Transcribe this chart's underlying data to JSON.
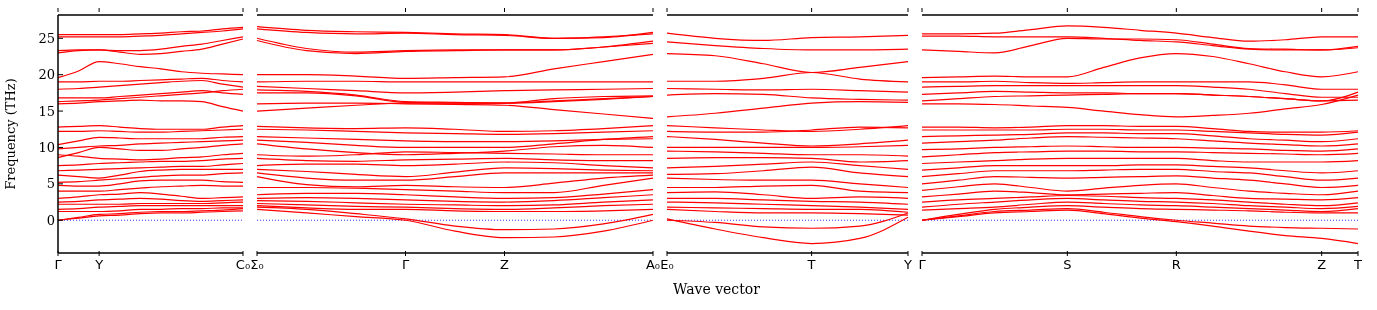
{
  "chart_data": [
    {
      "type": "line",
      "ylabel": "Frequency (THz)",
      "marker": "none",
      "categories": [
        "Γ",
        null,
        "Y",
        null,
        null,
        null,
        null,
        null,
        null,
        "C₀"
      ],
      "ylim": [
        -4.5,
        28.2
      ],
      "yticks": [
        0,
        5,
        10,
        15,
        20,
        25
      ],
      "ref_lines": [
        {
          "axis": "y",
          "value": 0,
          "color": "#0000ff",
          "line_style": "dotted"
        }
      ],
      "series": [
        {
          "color": "#ff0000",
          "values": [
            25.5,
            25.5,
            25.5,
            25.5,
            25.6,
            25.7,
            25.9,
            26.0,
            26.3,
            26.5
          ]
        },
        {
          "color": "#ff0000",
          "values": [
            25.2,
            25.2,
            25.2,
            25.2,
            25.3,
            25.4,
            25.6,
            25.8,
            26.0,
            26.3
          ]
        },
        {
          "color": "#ff0000",
          "values": [
            23.3,
            23.4,
            23.4,
            23.3,
            23.3,
            23.5,
            23.9,
            24.2,
            24.7,
            25.2
          ]
        },
        {
          "color": "#ff0000",
          "values": [
            23.0,
            23.3,
            23.4,
            23.1,
            22.8,
            22.9,
            23.2,
            23.5,
            24.2,
            24.9
          ]
        },
        {
          "color": "#ff0000",
          "values": [
            19.6,
            20.5,
            21.8,
            21.5,
            21.1,
            20.8,
            20.4,
            20.2,
            20.1,
            20.0
          ]
        },
        {
          "color": "#ff0000",
          "values": [
            19.0,
            19.0,
            19.1,
            19.1,
            19.2,
            19.3,
            19.4,
            19.5,
            19.2,
            19.0
          ]
        },
        {
          "color": "#ff0000",
          "values": [
            18.0,
            18.1,
            18.3,
            18.5,
            18.7,
            18.9,
            19.1,
            19.2,
            18.7,
            18.3
          ]
        },
        {
          "color": "#ff0000",
          "values": [
            16.8,
            16.8,
            16.8,
            17.0,
            17.2,
            17.4,
            17.6,
            17.8,
            17.5,
            17.3
          ]
        },
        {
          "color": "#ff0000",
          "values": [
            16.3,
            16.4,
            16.5,
            16.7,
            16.9,
            17.1,
            17.3,
            17.5,
            17.8,
            18.0
          ]
        },
        {
          "color": "#ff0000",
          "values": [
            16.0,
            16.1,
            16.3,
            16.4,
            16.5,
            16.4,
            16.4,
            16.3,
            15.6,
            15.0
          ]
        },
        {
          "color": "#ff0000",
          "values": [
            12.8,
            12.9,
            13.0,
            12.8,
            12.6,
            12.5,
            12.5,
            12.5,
            12.8,
            13.0
          ]
        },
        {
          "color": "#ff0000",
          "values": [
            12.2,
            12.2,
            12.3,
            12.2,
            12.1,
            12.1,
            12.2,
            12.3,
            12.4,
            12.5
          ]
        },
        {
          "color": "#ff0000",
          "values": [
            10.4,
            10.9,
            11.4,
            11.3,
            11.2,
            11.2,
            11.2,
            11.2,
            11.4,
            11.5
          ]
        },
        {
          "color": "#ff0000",
          "values": [
            9.8,
            10.0,
            10.2,
            10.3,
            10.5,
            10.6,
            10.7,
            10.8,
            10.9,
            11.0
          ]
        },
        {
          "color": "#ff0000",
          "values": [
            8.6,
            9.3,
            10.0,
            9.8,
            9.6,
            9.6,
            9.8,
            10.0,
            10.3,
            10.5
          ]
        },
        {
          "color": "#ff0000",
          "values": [
            9.0,
            8.8,
            8.5,
            8.4,
            8.3,
            8.4,
            8.6,
            8.7,
            9.0,
            9.2
          ]
        },
        {
          "color": "#ff0000",
          "values": [
            7.5,
            7.6,
            7.8,
            7.9,
            8.0,
            8.1,
            8.1,
            8.2,
            8.4,
            8.5
          ]
        },
        {
          "color": "#ff0000",
          "values": [
            6.8,
            6.9,
            7.0,
            7.1,
            7.2,
            7.3,
            7.4,
            7.4,
            7.6,
            7.8
          ]
        },
        {
          "color": "#ff0000",
          "values": [
            6.2,
            6.0,
            5.8,
            6.2,
            6.7,
            6.9,
            7.0,
            7.0,
            7.0,
            7.0
          ]
        },
        {
          "color": "#ff0000",
          "values": [
            5.2,
            5.3,
            5.5,
            5.7,
            5.9,
            6.1,
            6.2,
            6.2,
            6.4,
            6.5
          ]
        },
        {
          "color": "#ff0000",
          "values": [
            4.8,
            4.7,
            4.7,
            5.0,
            5.4,
            5.5,
            5.5,
            5.5,
            5.3,
            5.2
          ]
        },
        {
          "color": "#ff0000",
          "values": [
            4.0,
            4.0,
            4.0,
            4.2,
            4.4,
            4.6,
            4.7,
            4.8,
            4.7,
            4.7
          ]
        },
        {
          "color": "#ff0000",
          "values": [
            3.0,
            3.2,
            3.5,
            3.6,
            3.8,
            3.6,
            3.3,
            3.0,
            3.1,
            3.2
          ]
        },
        {
          "color": "#ff0000",
          "values": [
            2.5,
            2.6,
            2.8,
            2.9,
            3.0,
            2.9,
            2.7,
            2.6,
            2.7,
            2.8
          ]
        },
        {
          "color": "#ff0000",
          "values": [
            2.2,
            2.2,
            2.2,
            2.2,
            2.3,
            2.3,
            2.3,
            2.3,
            2.4,
            2.5
          ]
        },
        {
          "color": "#ff0000",
          "values": [
            1.5,
            1.6,
            1.8,
            1.9,
            2.0,
            2.0,
            2.0,
            2.0,
            2.0,
            2.0
          ]
        },
        {
          "color": "#ff0000",
          "values": [
            1.2,
            1.2,
            1.2,
            1.3,
            1.5,
            1.5,
            1.6,
            1.6,
            1.7,
            1.7
          ]
        },
        {
          "color": "#ff0000",
          "values": [
            0.0,
            0.4,
            0.8,
            0.9,
            1.1,
            1.2,
            1.2,
            1.3,
            1.4,
            1.6
          ]
        },
        {
          "color": "#ff0000",
          "values": [
            0.0,
            0.3,
            0.6,
            0.7,
            0.9,
            1.0,
            1.0,
            1.1,
            1.2,
            1.3
          ]
        }
      ]
    },
    {
      "type": "line",
      "marker": "none",
      "tick_labels": "x",
      "categories": [
        "Σ₀",
        null,
        null,
        "Γ",
        null,
        "Z",
        null,
        null,
        "A₀"
      ],
      "ylim": [
        -4.5,
        28.2
      ],
      "yticks": [
        0,
        5,
        10,
        15,
        20,
        25
      ],
      "ref_lines": [
        {
          "axis": "y",
          "value": 0,
          "color": "#0000ff",
          "line_style": "dotted"
        }
      ],
      "series": [
        {
          "color": "#ff0000",
          "values": [
            26.6,
            26.1,
            25.9,
            25.8,
            25.6,
            25.5,
            25.0,
            25.1,
            25.8
          ]
        },
        {
          "color": "#ff0000",
          "values": [
            26.3,
            25.8,
            25.6,
            25.7,
            25.5,
            25.4,
            25.0,
            25.2,
            25.6
          ]
        },
        {
          "color": "#ff0000",
          "values": [
            25.0,
            23.6,
            23.1,
            23.3,
            23.4,
            23.4,
            23.4,
            23.8,
            24.6
          ]
        },
        {
          "color": "#ff0000",
          "values": [
            24.7,
            23.3,
            22.9,
            23.2,
            23.3,
            23.4,
            23.4,
            23.8,
            24.3
          ]
        },
        {
          "color": "#ff0000",
          "values": [
            20.0,
            20.0,
            19.8,
            19.5,
            19.6,
            19.7,
            20.8,
            21.8,
            22.8
          ]
        },
        {
          "color": "#ff0000",
          "values": [
            19.0,
            19.1,
            19.1,
            19.0,
            19.0,
            19.0,
            19.0,
            19.0,
            19.0
          ]
        },
        {
          "color": "#ff0000",
          "values": [
            18.4,
            18.1,
            17.8,
            17.5,
            17.6,
            17.8,
            17.9,
            18.0,
            18.1
          ]
        },
        {
          "color": "#ff0000",
          "values": [
            17.5,
            17.5,
            17.1,
            16.2,
            16.1,
            16.1,
            16.7,
            17.0,
            17.1
          ]
        },
        {
          "color": "#ff0000",
          "values": [
            17.9,
            17.7,
            17.2,
            16.3,
            16.2,
            16.1,
            16.3,
            16.6,
            17.0
          ]
        },
        {
          "color": "#ff0000",
          "values": [
            16.0,
            16.1,
            16.1,
            16.0,
            15.9,
            15.8,
            15.2,
            14.6,
            14.0
          ]
        },
        {
          "color": "#ff0000",
          "values": [
            15.0,
            15.4,
            15.8,
            16.1,
            16.1,
            16.1,
            16.4,
            16.7,
            17.0
          ]
        },
        {
          "color": "#ff0000",
          "values": [
            12.9,
            12.7,
            12.6,
            12.7,
            12.5,
            12.2,
            12.3,
            12.6,
            13.0
          ]
        },
        {
          "color": "#ff0000",
          "values": [
            12.5,
            12.4,
            12.2,
            12.0,
            11.9,
            11.8,
            11.9,
            12.1,
            12.3
          ]
        },
        {
          "color": "#ff0000",
          "values": [
            11.5,
            11.3,
            11.1,
            10.9,
            10.8,
            10.8,
            10.9,
            11.1,
            11.2
          ]
        },
        {
          "color": "#ff0000",
          "values": [
            11.0,
            10.7,
            10.3,
            10.0,
            10.0,
            10.0,
            10.5,
            11.1,
            11.5
          ]
        },
        {
          "color": "#ff0000",
          "values": [
            10.5,
            9.8,
            9.3,
            9.0,
            9.2,
            9.5,
            10.1,
            10.3,
            10.0
          ]
        },
        {
          "color": "#ff0000",
          "values": [
            9.0,
            8.8,
            9.0,
            9.4,
            9.3,
            9.2,
            9.1,
            9.0,
            9.0
          ]
        },
        {
          "color": "#ff0000",
          "values": [
            8.5,
            8.2,
            8.1,
            8.3,
            8.4,
            8.5,
            8.3,
            8.2,
            8.2
          ]
        },
        {
          "color": "#ff0000",
          "values": [
            7.5,
            7.7,
            7.7,
            7.5,
            7.7,
            8.0,
            7.9,
            7.5,
            7.2
          ]
        },
        {
          "color": "#ff0000",
          "values": [
            7.0,
            6.7,
            6.3,
            6.0,
            6.6,
            7.2,
            7.1,
            6.9,
            6.8
          ]
        },
        {
          "color": "#ff0000",
          "values": [
            6.5,
            5.8,
            5.5,
            5.5,
            6.0,
            6.5,
            6.5,
            6.5,
            6.5
          ]
        },
        {
          "color": "#ff0000",
          "values": [
            6.0,
            4.9,
            4.6,
            4.8,
            4.6,
            4.5,
            5.1,
            5.8,
            6.2
          ]
        },
        {
          "color": "#ff0000",
          "values": [
            4.5,
            4.5,
            4.4,
            4.2,
            4.0,
            3.8,
            3.8,
            4.8,
            5.8
          ]
        },
        {
          "color": "#ff0000",
          "values": [
            3.5,
            3.7,
            3.7,
            3.5,
            3.2,
            3.0,
            3.1,
            3.6,
            4.2
          ]
        },
        {
          "color": "#ff0000",
          "values": [
            3.0,
            3.1,
            3.0,
            2.8,
            2.6,
            2.5,
            2.7,
            3.1,
            3.5
          ]
        },
        {
          "color": "#ff0000",
          "values": [
            2.7,
            2.6,
            2.4,
            2.2,
            2.1,
            2.0,
            2.1,
            2.5,
            2.8
          ]
        },
        {
          "color": "#ff0000",
          "values": [
            2.3,
            2.1,
            1.9,
            1.8,
            1.6,
            1.5,
            1.7,
            2.0,
            2.2
          ]
        },
        {
          "color": "#ff0000",
          "values": [
            2.0,
            1.7,
            1.5,
            1.5,
            1.3,
            1.2,
            1.2,
            1.3,
            1.5
          ]
        },
        {
          "color": "#ff0000",
          "values": [
            1.8,
            1.5,
            0.9,
            0.2,
            -0.8,
            -1.3,
            -1.2,
            -0.5,
            0.8
          ]
        },
        {
          "color": "#ff0000",
          "values": [
            1.5,
            1.0,
            0.5,
            0.0,
            -1.5,
            -2.4,
            -2.3,
            -1.5,
            0.0
          ]
        }
      ]
    },
    {
      "type": "line",
      "marker": "none",
      "tick_labels": "x",
      "xlabel": "Wave vector",
      "categories": [
        "E₀",
        null,
        null,
        "T",
        null,
        "Y"
      ],
      "ylim": [
        -4.5,
        28.2
      ],
      "yticks": [
        0,
        5,
        10,
        15,
        20,
        25
      ],
      "ref_lines": [
        {
          "axis": "y",
          "value": 0,
          "color": "#0000ff",
          "line_style": "dotted"
        }
      ],
      "series": [
        {
          "color": "#ff0000",
          "values": [
            25.7,
            25.0,
            24.7,
            25.1,
            25.2,
            25.4
          ]
        },
        {
          "color": "#ff0000",
          "values": [
            24.5,
            24.0,
            23.6,
            23.4,
            23.4,
            23.5
          ]
        },
        {
          "color": "#ff0000",
          "values": [
            22.9,
            22.6,
            21.5,
            20.3,
            21.0,
            21.8
          ]
        },
        {
          "color": "#ff0000",
          "values": [
            19.1,
            19.1,
            19.5,
            20.3,
            19.4,
            19.0
          ]
        },
        {
          "color": "#ff0000",
          "values": [
            18.1,
            18.0,
            17.9,
            18.0,
            17.8,
            17.6
          ]
        },
        {
          "color": "#ff0000",
          "values": [
            17.2,
            17.4,
            17.3,
            16.8,
            16.6,
            16.5
          ]
        },
        {
          "color": "#ff0000",
          "values": [
            14.2,
            14.7,
            15.4,
            16.1,
            16.3,
            16.2
          ]
        },
        {
          "color": "#ff0000",
          "values": [
            13.0,
            12.7,
            12.4,
            12.2,
            12.5,
            13.0
          ]
        },
        {
          "color": "#ff0000",
          "values": [
            12.2,
            12.1,
            12.1,
            12.4,
            12.8,
            12.7
          ]
        },
        {
          "color": "#ff0000",
          "values": [
            11.5,
            11.1,
            10.6,
            10.2,
            10.5,
            11.0
          ]
        },
        {
          "color": "#ff0000",
          "values": [
            10.0,
            10.0,
            10.0,
            10.0,
            10.1,
            10.3
          ]
        },
        {
          "color": "#ff0000",
          "values": [
            9.5,
            9.4,
            9.2,
            9.0,
            9.0,
            8.8
          ]
        },
        {
          "color": "#ff0000",
          "values": [
            8.5,
            8.6,
            8.6,
            8.5,
            8.0,
            8.2
          ]
        },
        {
          "color": "#ff0000",
          "values": [
            7.2,
            7.4,
            7.7,
            8.0,
            7.5,
            7.0
          ]
        },
        {
          "color": "#ff0000",
          "values": [
            6.3,
            6.4,
            6.8,
            7.3,
            6.5,
            6.0
          ]
        },
        {
          "color": "#ff0000",
          "values": [
            5.8,
            5.6,
            5.5,
            5.5,
            5.0,
            4.5
          ]
        },
        {
          "color": "#ff0000",
          "values": [
            4.5,
            4.5,
            4.7,
            4.8,
            4.0,
            3.8
          ]
        },
        {
          "color": "#ff0000",
          "values": [
            3.8,
            3.9,
            3.5,
            3.0,
            3.2,
            3.0
          ]
        },
        {
          "color": "#ff0000",
          "values": [
            3.0,
            3.0,
            2.8,
            2.6,
            2.5,
            2.2
          ]
        },
        {
          "color": "#ff0000",
          "values": [
            2.5,
            2.4,
            2.2,
            2.0,
            1.8,
            1.5
          ]
        },
        {
          "color": "#ff0000",
          "values": [
            1.8,
            1.7,
            1.6,
            1.5,
            1.5,
            1.1
          ]
        },
        {
          "color": "#ff0000",
          "values": [
            1.5,
            1.2,
            1.0,
            1.0,
            0.9,
            0.7
          ]
        },
        {
          "color": "#ff0000",
          "values": [
            0.0,
            -0.3,
            -0.9,
            -1.1,
            -0.8,
            1.0
          ]
        },
        {
          "color": "#ff0000",
          "values": [
            0.2,
            -1.2,
            -2.4,
            -3.2,
            -2.5,
            0.4
          ]
        }
      ]
    },
    {
      "type": "line",
      "marker": "none",
      "tick_labels": "x",
      "categories": [
        "Γ",
        null,
        null,
        null,
        "S",
        null,
        null,
        "R",
        null,
        null,
        null,
        "Z",
        "T"
      ],
      "ylim": [
        -4.5,
        28.2
      ],
      "yticks": [
        0,
        5,
        10,
        15,
        20,
        25
      ],
      "ref_lines": [
        {
          "axis": "y",
          "value": 0,
          "color": "#0000ff",
          "line_style": "dotted"
        }
      ],
      "series": [
        {
          "color": "#ff0000",
          "values": [
            25.6,
            25.6,
            25.7,
            26.2,
            26.7,
            26.5,
            26.1,
            25.7,
            25.1,
            24.6,
            24.8,
            25.2,
            25.2
          ]
        },
        {
          "color": "#ff0000",
          "values": [
            25.3,
            25.3,
            25.2,
            25.2,
            25.2,
            25.0,
            24.7,
            24.5,
            24.0,
            23.5,
            23.4,
            23.4,
            23.7
          ]
        },
        {
          "color": "#ff0000",
          "values": [
            23.4,
            23.2,
            23.0,
            24.0,
            25.0,
            24.9,
            24.9,
            24.8,
            24.2,
            23.6,
            23.5,
            23.4,
            23.9
          ]
        },
        {
          "color": "#ff0000",
          "values": [
            19.6,
            19.7,
            19.8,
            19.7,
            19.7,
            21.0,
            22.3,
            22.9,
            22.5,
            21.5,
            20.4,
            19.7,
            20.4
          ]
        },
        {
          "color": "#ff0000",
          "values": [
            19.0,
            19.0,
            19.1,
            18.9,
            18.8,
            18.9,
            19.0,
            19.0,
            19.0,
            19.0,
            18.6,
            18.0,
            18.0
          ]
        },
        {
          "color": "#ff0000",
          "values": [
            18.3,
            18.4,
            18.5,
            18.5,
            18.5,
            18.5,
            18.5,
            18.5,
            18.3,
            18.0,
            17.4,
            16.9,
            16.9
          ]
        },
        {
          "color": "#ff0000",
          "values": [
            17.3,
            17.5,
            17.7,
            17.6,
            17.5,
            17.5,
            17.4,
            17.4,
            17.2,
            17.0,
            16.7,
            16.4,
            17.6
          ]
        },
        {
          "color": "#ff0000",
          "values": [
            16.4,
            16.7,
            17.0,
            17.1,
            17.2,
            17.3,
            17.4,
            17.4,
            17.2,
            17.0,
            16.7,
            16.4,
            16.5
          ]
        },
        {
          "color": "#ff0000",
          "values": [
            16.0,
            16.0,
            15.9,
            15.7,
            15.5,
            15.0,
            14.5,
            14.2,
            14.4,
            14.7,
            15.3,
            15.9,
            17.2
          ]
        },
        {
          "color": "#ff0000",
          "values": [
            12.8,
            12.8,
            12.7,
            12.8,
            13.0,
            13.0,
            12.9,
            12.9,
            12.6,
            12.2,
            12.1,
            12.1,
            12.3
          ]
        },
        {
          "color": "#ff0000",
          "values": [
            12.4,
            12.4,
            12.4,
            12.4,
            12.5,
            12.5,
            12.4,
            12.4,
            12.2,
            12.0,
            11.8,
            11.7,
            12.1
          ]
        },
        {
          "color": "#ff0000",
          "values": [
            11.5,
            11.6,
            11.7,
            11.8,
            12.0,
            12.0,
            11.9,
            11.9,
            11.6,
            11.2,
            11.0,
            10.8,
            11.2
          ]
        },
        {
          "color": "#ff0000",
          "values": [
            10.6,
            10.8,
            11.0,
            11.3,
            11.5,
            11.4,
            11.3,
            11.2,
            10.9,
            10.6,
            10.4,
            10.2,
            10.5
          ]
        },
        {
          "color": "#ff0000",
          "values": [
            9.7,
            9.8,
            10.0,
            10.1,
            10.2,
            10.1,
            10.0,
            10.0,
            9.9,
            9.8,
            9.6,
            9.5,
            9.8
          ]
        },
        {
          "color": "#ff0000",
          "values": [
            8.7,
            9.0,
            9.3,
            9.4,
            9.5,
            9.5,
            9.4,
            9.4,
            9.3,
            9.2,
            9.1,
            9.0,
            9.2
          ]
        },
        {
          "color": "#ff0000",
          "values": [
            7.8,
            8.0,
            8.2,
            8.4,
            8.5,
            8.5,
            8.5,
            8.5,
            8.2,
            8.0,
            8.0,
            8.0,
            8.2
          ]
        },
        {
          "color": "#ff0000",
          "values": [
            6.9,
            7.2,
            7.5,
            7.5,
            7.5,
            7.5,
            7.6,
            7.6,
            7.4,
            7.2,
            6.8,
            6.5,
            6.8
          ]
        },
        {
          "color": "#ff0000",
          "values": [
            6.0,
            6.4,
            6.8,
            6.8,
            6.8,
            6.9,
            7.0,
            7.0,
            6.7,
            6.5,
            6.0,
            5.5,
            5.8
          ]
        },
        {
          "color": "#ff0000",
          "values": [
            5.0,
            5.5,
            6.0,
            5.9,
            5.8,
            5.9,
            6.0,
            6.1,
            5.8,
            5.5,
            5.0,
            4.5,
            4.8
          ]
        },
        {
          "color": "#ff0000",
          "values": [
            4.1,
            4.6,
            5.0,
            4.5,
            4.0,
            4.4,
            4.8,
            5.0,
            4.5,
            4.0,
            3.7,
            3.5,
            4.0
          ]
        },
        {
          "color": "#ff0000",
          "values": [
            3.2,
            3.6,
            4.0,
            3.8,
            3.5,
            3.6,
            3.7,
            3.8,
            3.4,
            3.0,
            2.9,
            2.8,
            3.1
          ]
        },
        {
          "color": "#ff0000",
          "values": [
            2.5,
            2.8,
            3.0,
            3.2,
            3.4,
            3.3,
            3.1,
            3.0,
            2.8,
            2.5,
            2.2,
            2.0,
            2.4
          ]
        },
        {
          "color": "#ff0000",
          "values": [
            1.8,
            2.2,
            2.5,
            2.8,
            3.0,
            2.8,
            2.6,
            2.5,
            2.3,
            2.0,
            1.8,
            1.6,
            1.9
          ]
        },
        {
          "color": "#ff0000",
          "values": [
            1.4,
            1.6,
            1.8,
            2.2,
            2.5,
            2.3,
            2.1,
            2.0,
            1.8,
            1.6,
            1.4,
            1.2,
            1.6
          ]
        },
        {
          "color": "#ff0000",
          "values": [
            0.0,
            0.8,
            1.5,
            1.8,
            2.0,
            1.8,
            1.6,
            1.5,
            1.4,
            1.3,
            1.1,
            1.0,
            1.0
          ]
        },
        {
          "color": "#ff0000",
          "values": [
            0.0,
            0.6,
            1.2,
            1.4,
            1.6,
            1.1,
            0.5,
            0.0,
            -0.4,
            -0.8,
            -1.0,
            -1.1,
            -1.2
          ]
        },
        {
          "color": "#ff0000",
          "values": [
            0.0,
            0.5,
            1.0,
            1.2,
            1.4,
            0.9,
            0.3,
            -0.2,
            -0.8,
            -1.5,
            -2.1,
            -2.5,
            -3.2
          ]
        }
      ]
    }
  ]
}
